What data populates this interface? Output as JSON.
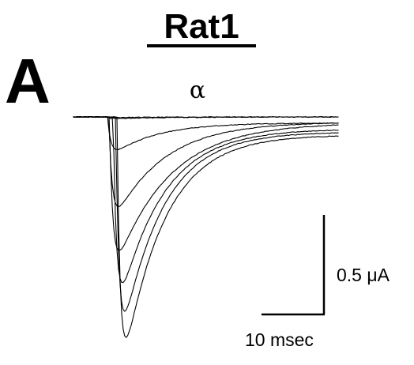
{
  "figure": {
    "title": "Rat1",
    "panel_label": "A",
    "subunit_label": "α"
  },
  "chart_data": {
    "type": "line",
    "xlabel": "",
    "ylabel": "",
    "grid": false,
    "x_unit": "msec",
    "y_unit": "μA",
    "scale_bar": {
      "time_value": 10,
      "time_label": "10 msec",
      "current_value": 0.5,
      "current_label": "0.5 μA"
    },
    "trace_shape": "inward current transients: rapid onset, exponential decay",
    "series": [
      {
        "onset_ms": 2.2,
        "peak_uA": -0.004,
        "tau_ms": 8.0,
        "offset_uA": 0.0
      },
      {
        "onset_ms": 2.2,
        "peak_uA": -0.01,
        "tau_ms": 9.0,
        "offset_uA": 0.0
      },
      {
        "onset_ms": 2.3,
        "peak_uA": -0.18,
        "tau_ms": 7.0,
        "offset_uA": -0.03
      },
      {
        "onset_ms": 2.5,
        "peak_uA": -0.55,
        "tau_ms": 8.0,
        "offset_uA": -0.025
      },
      {
        "onset_ms": 2.6,
        "peak_uA": -0.82,
        "tau_ms": 8.5,
        "offset_uA": -0.03
      },
      {
        "onset_ms": 3.2,
        "peak_uA": -1.03,
        "tau_ms": 7.0,
        "offset_uA": -0.06
      },
      {
        "onset_ms": 3.6,
        "peak_uA": -1.22,
        "tau_ms": 6.5,
        "offset_uA": -0.075
      },
      {
        "onset_ms": 3.8,
        "peak_uA": -1.38,
        "tau_ms": 6.5,
        "offset_uA": -0.09
      }
    ]
  }
}
